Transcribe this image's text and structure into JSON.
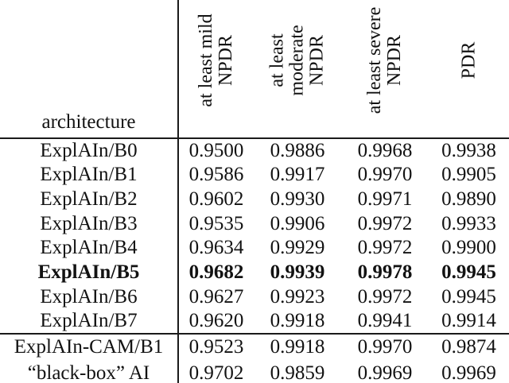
{
  "table": {
    "corner_header": "architecture",
    "col_headers": [
      {
        "lines": [
          "at least mild",
          "NPDR"
        ]
      },
      {
        "lines": [
          "at least",
          "moderate",
          "NPDR"
        ]
      },
      {
        "lines": [
          "at least severe",
          "NPDR"
        ]
      },
      {
        "lines": [
          "PDR"
        ]
      }
    ],
    "groups": [
      {
        "rows": [
          {
            "label": "ExplAIn/B0",
            "bold": false,
            "values": [
              "0.9500",
              "0.9886",
              "0.9968",
              "0.9938"
            ]
          },
          {
            "label": "ExplAIn/B1",
            "bold": false,
            "values": [
              "0.9586",
              "0.9917",
              "0.9970",
              "0.9905"
            ]
          },
          {
            "label": "ExplAIn/B2",
            "bold": false,
            "values": [
              "0.9602",
              "0.9930",
              "0.9971",
              "0.9890"
            ]
          },
          {
            "label": "ExplAIn/B3",
            "bold": false,
            "values": [
              "0.9535",
              "0.9906",
              "0.9972",
              "0.9933"
            ]
          },
          {
            "label": "ExplAIn/B4",
            "bold": false,
            "values": [
              "0.9634",
              "0.9929",
              "0.9972",
              "0.9900"
            ]
          },
          {
            "label": "ExplAIn/B5",
            "bold": true,
            "values": [
              "0.9682",
              "0.9939",
              "0.9978",
              "0.9945"
            ]
          },
          {
            "label": "ExplAIn/B6",
            "bold": false,
            "values": [
              "0.9627",
              "0.9923",
              "0.9972",
              "0.9945"
            ]
          },
          {
            "label": "ExplAIn/B7",
            "bold": false,
            "values": [
              "0.9620",
              "0.9918",
              "0.9941",
              "0.9914"
            ]
          }
        ]
      },
      {
        "rows": [
          {
            "label": "ExplAIn-CAM/B1",
            "bold": false,
            "values": [
              "0.9523",
              "0.9918",
              "0.9970",
              "0.9874"
            ]
          },
          {
            "label": "“black-box” AI",
            "bold": false,
            "values": [
              "0.9702",
              "0.9859",
              "0.9969",
              "0.9969"
            ]
          }
        ]
      }
    ]
  },
  "colors": {
    "text": "#121212",
    "rule": "#1a1a1a",
    "background": "#ffffff"
  }
}
